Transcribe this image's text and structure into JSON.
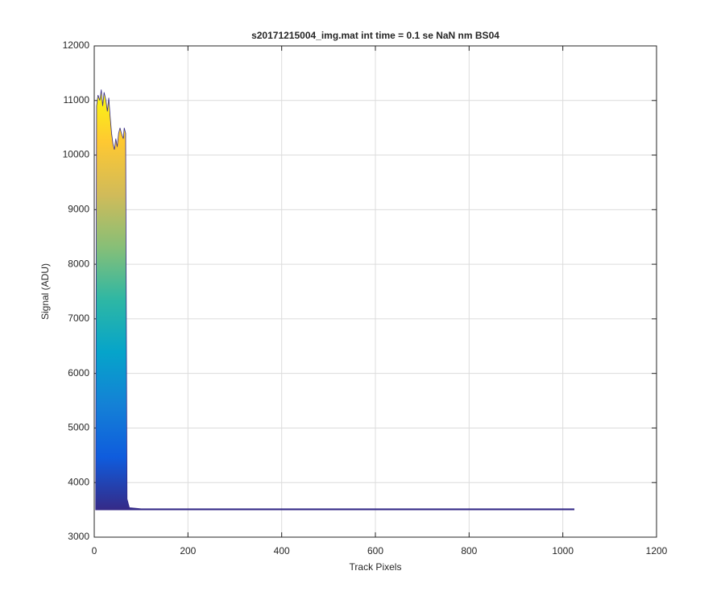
{
  "chart_data": {
    "type": "area",
    "title": "s20171215004_img.mat int time = 0.1 se  NaN nm BS04",
    "x_label": "Track Pixels",
    "y_label": "Signal (ADU)",
    "xlim": [
      0,
      1200
    ],
    "xticks": [
      0,
      200,
      400,
      600,
      800,
      1000,
      1200
    ],
    "ylim": [
      3000,
      12000
    ],
    "yticks": [
      3000,
      4000,
      5000,
      6000,
      7000,
      8000,
      9000,
      10000,
      11000,
      12000
    ],
    "grid": true,
    "colormap": [
      "#352a87",
      "#0f5cdd",
      "#1481d6",
      "#06a4ca",
      "#2eb7a4",
      "#87bf77",
      "#d1bb59",
      "#fec832",
      "#f9fb0e"
    ],
    "line_color": "#352a87",
    "x": [
      3,
      5,
      8,
      12,
      15,
      18,
      21,
      25,
      28,
      31,
      34,
      37,
      40,
      43,
      46,
      49,
      52,
      55,
      58,
      62,
      64,
      67,
      70,
      75,
      100,
      1024
    ],
    "series": [
      {
        "values": [
          3520,
          10900,
          11100,
          11000,
          11200,
          10900,
          11150,
          11000,
          10800,
          11050,
          10700,
          10400,
          10200,
          10100,
          10300,
          10150,
          10400,
          10500,
          10400,
          10300,
          10500,
          10400,
          3700,
          3540,
          3520,
          3520
        ],
        "lower": [
          3500,
          3500,
          3500,
          3500,
          3500,
          3500,
          3500,
          3500,
          3500,
          3500,
          3500,
          3500,
          3500,
          3500,
          3500,
          3500,
          3500,
          3500,
          3500,
          3500,
          3500,
          3500,
          3500,
          3500,
          3500,
          3500
        ]
      }
    ]
  }
}
